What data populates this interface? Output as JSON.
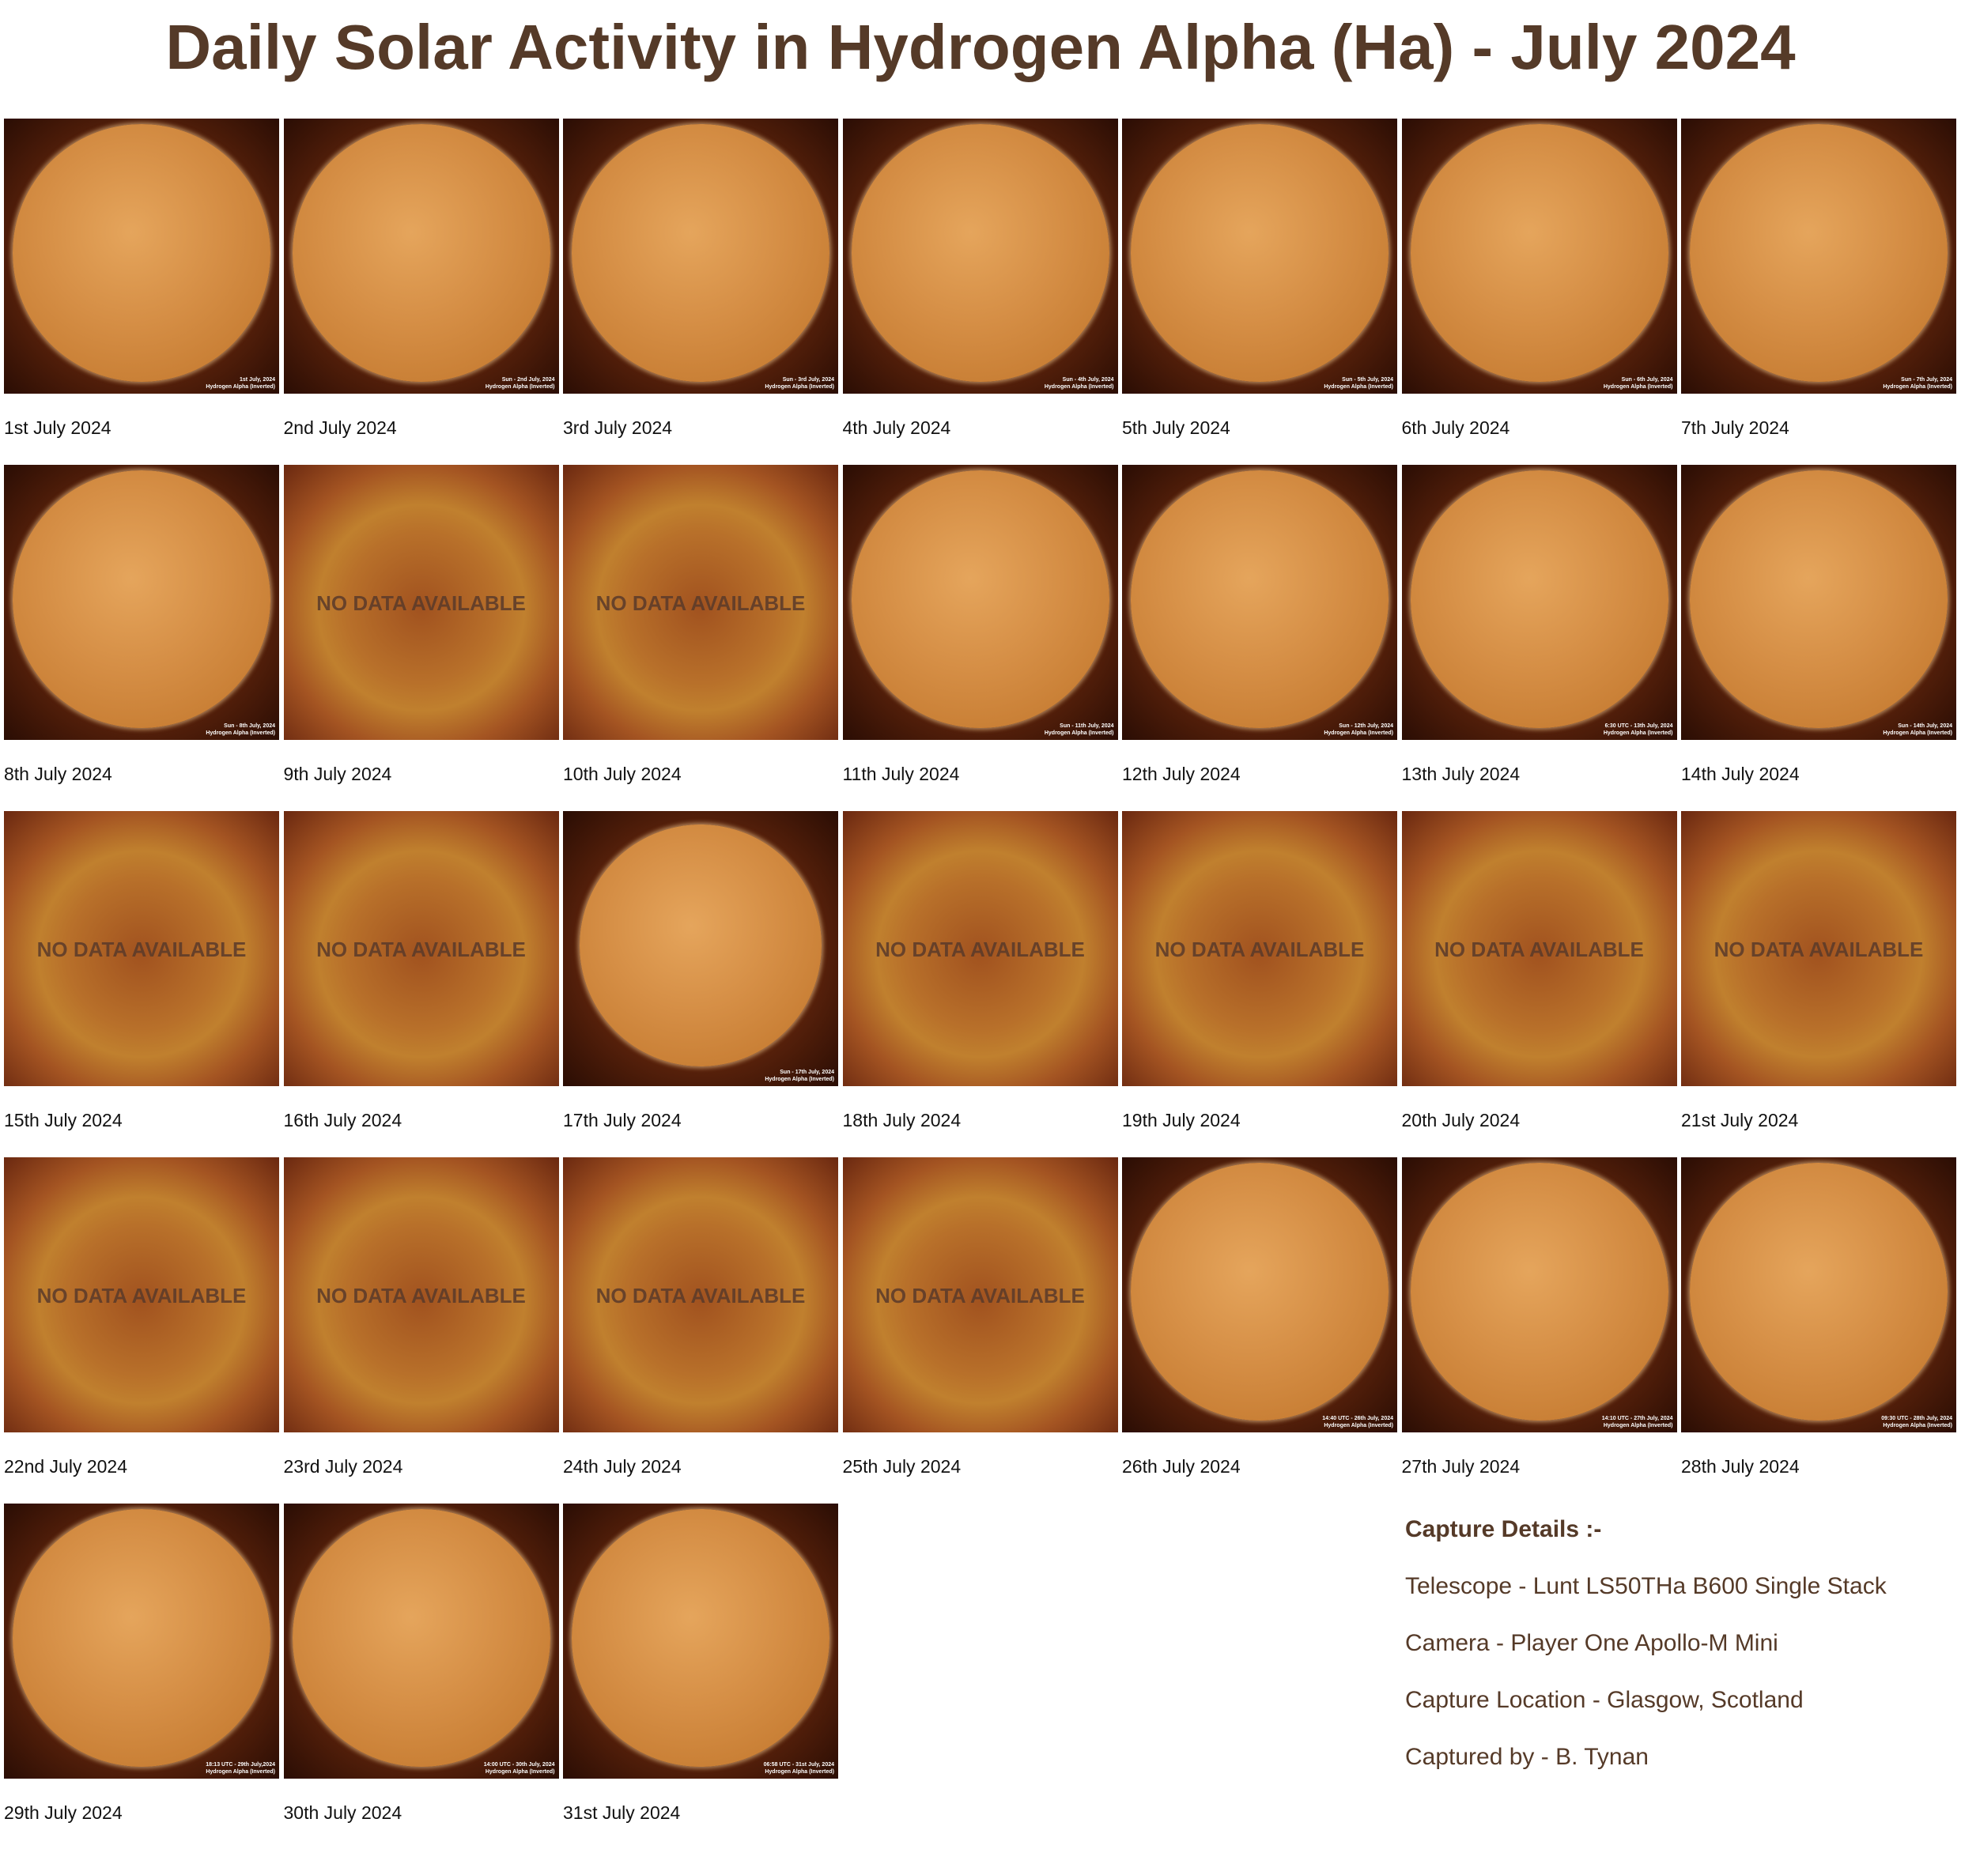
{
  "title": "Daily Solar Activity in Hydrogen Alpha (Ha) -  July 2024",
  "days": [
    {
      "caption": "1st July 2024",
      "stamp": [
        "1st July, 2024",
        "Hydrogen Alpha (Inverted)"
      ]
    },
    {
      "caption": "2nd July 2024",
      "stamp": [
        "Sun - 2nd July, 2024",
        "Hydrogen Alpha (Inverted)"
      ]
    },
    {
      "caption": "3rd July 2024",
      "stamp": [
        "Sun - 3rd July, 2024",
        "Hydrogen Alpha (Inverted)"
      ]
    },
    {
      "caption": "4th July 2024",
      "stamp": [
        "Sun - 4th July, 2024",
        "Hydrogen Alpha (Inverted)"
      ]
    },
    {
      "caption": "5th July 2024",
      "stamp": [
        "Sun - 5th July, 2024",
        "Hydrogen Alpha (Inverted)"
      ]
    },
    {
      "caption": "6th July 2024",
      "stamp": [
        "Sun - 6th July, 2024",
        "Hydrogen Alpha (Inverted)"
      ]
    },
    {
      "caption": "7th July 2024",
      "stamp": [
        "Sun - 7th July, 2024",
        "Hydrogen Alpha (Inverted)"
      ]
    },
    {
      "caption": "8th July 2024",
      "stamp": [
        "Sun - 8th July, 2024",
        "Hydrogen Alpha (Inverted)"
      ]
    },
    {
      "caption": "9th July 2024",
      "overlay": "NO DATA AVAILABLE"
    },
    {
      "caption": "10th July 2024",
      "overlay": "NO DATA AVAILABLE"
    },
    {
      "caption": "11th July 2024",
      "stamp": [
        "Sun - 11th July, 2024",
        "Hydrogen Alpha (Inverted)"
      ]
    },
    {
      "caption": "12th July 2024",
      "stamp": [
        "Sun - 12th July, 2024",
        "Hydrogen Alpha (Inverted)"
      ]
    },
    {
      "caption": "13th July 2024",
      "stamp": [
        "6:30 UTC - 13th July, 2024",
        "Hydrogen Alpha (Inverted)"
      ]
    },
    {
      "caption": "14th July 2024",
      "stamp": [
        "Sun - 14th July, 2024",
        "Hydrogen Alpha (Inverted)"
      ]
    },
    {
      "caption": "15th July 2024",
      "overlay": "NO DATA AVAILABLE"
    },
    {
      "caption": "16th July 2024",
      "overlay": "NO DATA AVAILABLE"
    },
    {
      "caption": "17th July 2024",
      "stamp": [
        "Sun - 17th July, 2024",
        "Hydrogen Alpha (Inverted)"
      ]
    },
    {
      "caption": "18th July 2024",
      "overlay": "NO DATA AVAILABLE"
    },
    {
      "caption": "19th July 2024",
      "overlay": "NO DATA AVAILABLE"
    },
    {
      "caption": "20th July 2024",
      "overlay": "NO DATA AVAILABLE"
    },
    {
      "caption": "21st July 2024",
      "overlay": "NO DATA AVAILABLE"
    },
    {
      "caption": "22nd July 2024",
      "overlay": "NO DATA AVAILABLE"
    },
    {
      "caption": "23rd July 2024",
      "overlay": "NO DATA AVAILABLE"
    },
    {
      "caption": "24th July 2024",
      "overlay": "NO DATA AVAILABLE"
    },
    {
      "caption": "25th July 2024",
      "overlay": "NO DATA AVAILABLE"
    },
    {
      "caption": "26th July 2024",
      "stamp": [
        "14:40 UTC - 26th July, 2024",
        "Hydrogen Alpha (Inverted)"
      ]
    },
    {
      "caption": "27th July 2024",
      "stamp": [
        "14:10 UTC - 27th July, 2024",
        "Hydrogen Alpha (Inverted)"
      ]
    },
    {
      "caption": "28th July 2024",
      "stamp": [
        "09:30 UTC - 28th July, 2024",
        "Hydrogen Alpha (Inverted)"
      ]
    },
    {
      "caption": "29th July 2024",
      "stamp": [
        "18:13 UTC - 29th July,2024",
        "Hydrogen Alpha (Inverted)"
      ]
    },
    {
      "caption": "30th July 2024",
      "stamp": [
        "14:00 UTC - 30th July, 2024",
        "Hydrogen Alpha (Inverted)"
      ]
    },
    {
      "caption": "31st July 2024",
      "stamp": [
        "06:58 UTC - 31st July, 2024",
        "Hydrogen Alpha (Inverted)"
      ]
    }
  ],
  "capture_details": {
    "heading": "Capture Details :-",
    "lines": [
      "Telescope - Lunt LS50THa B600 Single Stack",
      "Camera - Player One Apollo-M Mini",
      "Capture Location - Glasgow, Scotland",
      "Captured by - B. Tynan"
    ]
  }
}
